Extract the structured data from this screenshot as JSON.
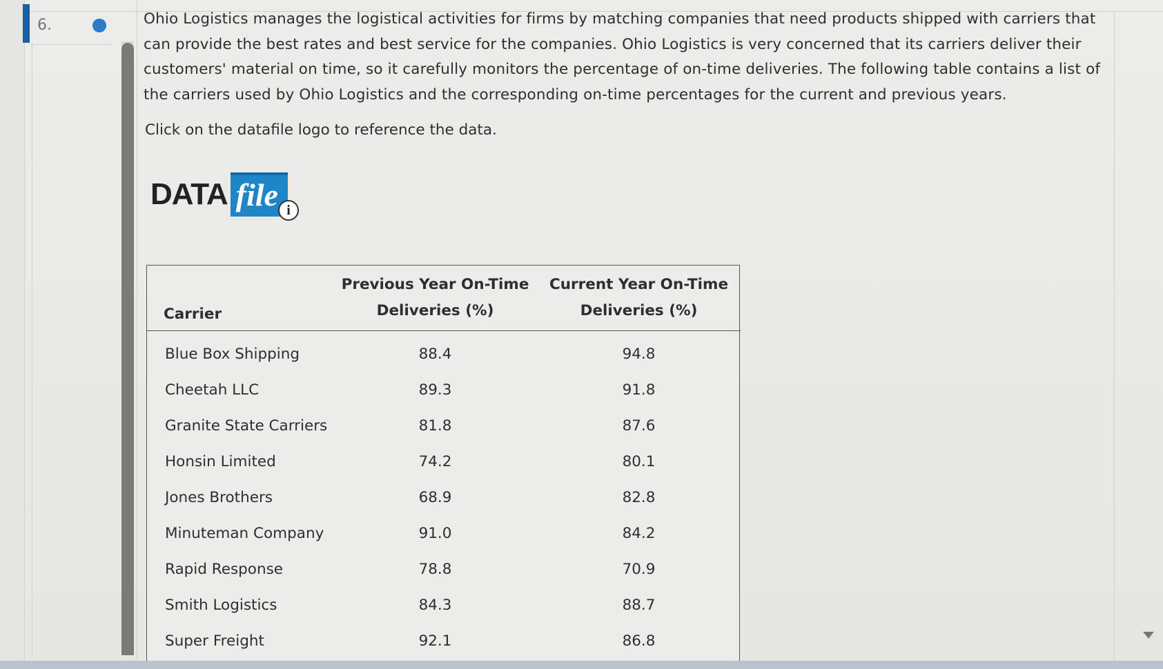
{
  "question": {
    "number": "6.",
    "text": "Ohio Logistics manages the logistical activities for firms by matching companies that need products shipped with carriers that can provide the best rates and best service for the companies. Ohio Logistics is very concerned that its carriers deliver their customers' material on time, so it carefully monitors the percentage of on-time deliveries. The following table contains a list of the carriers used by Ohio Logistics and the corresponding on-time percentages for the current and previous years.",
    "instruction": "Click on the datafile logo to reference the data."
  },
  "datafile_logo": {
    "data_text": "DATA",
    "file_text": "file",
    "info_glyph": "i"
  },
  "table": {
    "headers": {
      "carrier": "Carrier",
      "previous_line1": "Previous Year On-Time",
      "previous_line2": "Deliveries (%)",
      "current_line1": "Current Year On-Time",
      "current_line2": "Deliveries (%)"
    },
    "rows": [
      {
        "carrier": "Blue Box Shipping",
        "previous": "88.4",
        "current": "94.8"
      },
      {
        "carrier": "Cheetah LLC",
        "previous": "89.3",
        "current": "91.8"
      },
      {
        "carrier": "Granite State Carriers",
        "previous": "81.8",
        "current": "87.6"
      },
      {
        "carrier": "Honsin Limited",
        "previous": "74.2",
        "current": "80.1"
      },
      {
        "carrier": "Jones Brothers",
        "previous": "68.9",
        "current": "82.8"
      },
      {
        "carrier": "Minuteman Company",
        "previous": "91.0",
        "current": "84.2"
      },
      {
        "carrier": "Rapid Response",
        "previous": "78.8",
        "current": "70.9"
      },
      {
        "carrier": "Smith Logistics",
        "previous": "84.3",
        "current": "88.7"
      },
      {
        "carrier": "Super Freight",
        "previous": "92.1",
        "current": "86.8"
      }
    ]
  },
  "colors": {
    "question_marker": "#1b5ea8",
    "status_dot": "#2a7bc4",
    "datafile_blue": "#1e86c7"
  },
  "icons": {
    "status": "status-dot-icon",
    "info": "info-icon",
    "scroll_down": "scroll-down-arrow-icon"
  }
}
